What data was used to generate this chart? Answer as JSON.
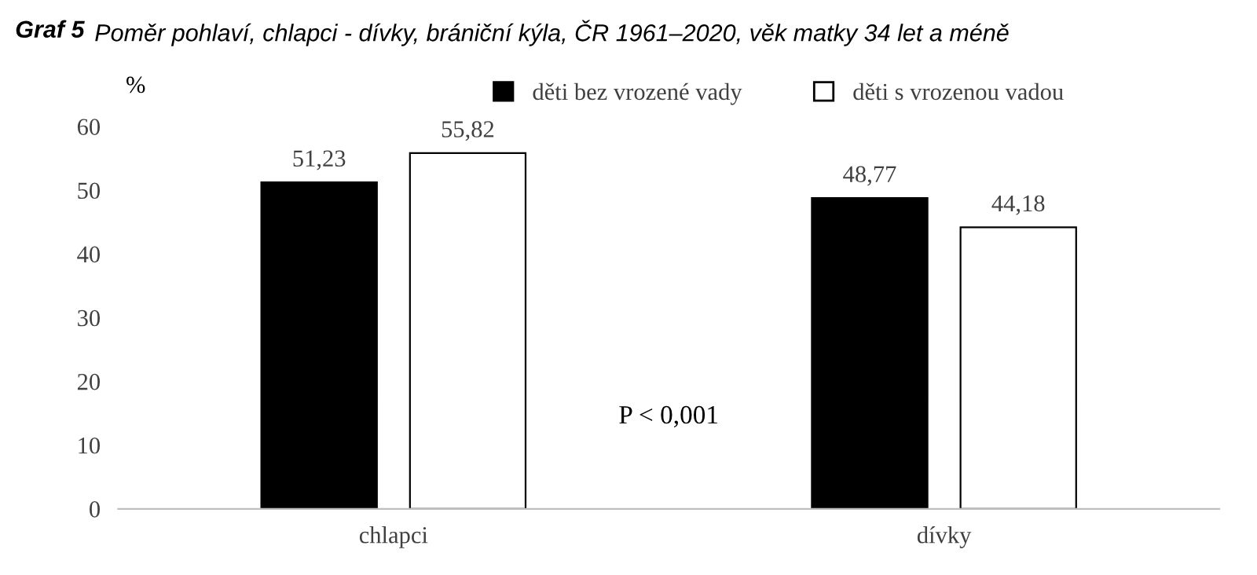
{
  "chart_data": {
    "type": "bar",
    "title": "Graf 5",
    "subtitle": "Poměr pohlaví, chlapci - dívky, brániční kýla, ČR 1961–2020, věk matky 34 let a méně",
    "ylabel": "%",
    "categories": [
      "chlapci",
      "dívky"
    ],
    "series": [
      {
        "name": "děti bez vrozené vady",
        "color": "#000000",
        "values": [
          51.23,
          48.77
        ],
        "value_labels": [
          "51,23",
          "48,77"
        ]
      },
      {
        "name": "děti s vrozenou vadou",
        "color": "#ffffff",
        "values": [
          55.82,
          44.18
        ],
        "value_labels": [
          "55,82",
          "44,18"
        ]
      }
    ],
    "ylim": [
      0,
      60
    ],
    "yticks": [
      0,
      10,
      20,
      30,
      40,
      50,
      60
    ],
    "grid": false,
    "legend": "top",
    "annotations": [
      "P < 0,001"
    ]
  }
}
